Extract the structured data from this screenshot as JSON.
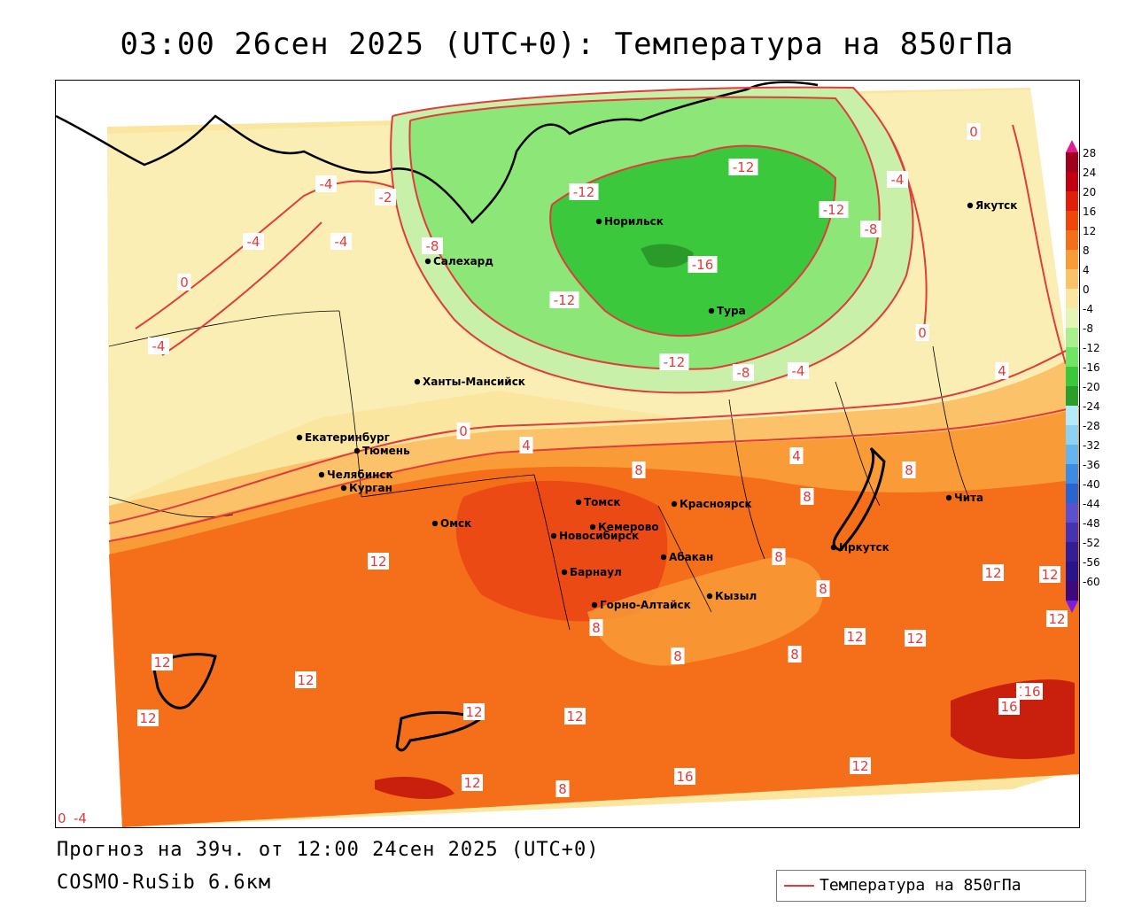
{
  "title": "03:00 26сен 2025 (UTC+0): Температура на 850гПа",
  "forecast_line": "Прогноз на 39ч. от 12:00 24сен 2025 (UTC+0)",
  "model_line": "COSMO-RuSib 6.6км",
  "legend": {
    "label": "Температура на 850гПа",
    "line_color": "#e03c3c"
  },
  "colorbar": {
    "labels": [
      "28",
      "24",
      "20",
      "16",
      "12",
      "8",
      "4",
      "0",
      "-4",
      "-8",
      "-12",
      "-16",
      "-20",
      "-24",
      "-28",
      "-32",
      "-36",
      "-40",
      "-44",
      "-48",
      "-52",
      "-56",
      "-60"
    ],
    "colors": [
      "#a0001e",
      "#c00012",
      "#e01e0a",
      "#f0460a",
      "#f56e19",
      "#f99b37",
      "#fbc26a",
      "#fbe6a0",
      "#e6f5b4",
      "#a8f08c",
      "#6ee664",
      "#3cc83c",
      "#2aa02a",
      "#b4ebfa",
      "#8cd2f5",
      "#64b4f0",
      "#3c8ce6",
      "#2864d2",
      "#5a50d2",
      "#4632b4",
      "#321e96",
      "#28148c",
      "#3c0a7d"
    ]
  },
  "cities": [
    {
      "name": "Якутск"
    },
    {
      "name": "Норильск"
    },
    {
      "name": "Салехард"
    },
    {
      "name": "Тура"
    },
    {
      "name": "Ханты-Мансийск"
    },
    {
      "name": "Екатеринбург"
    },
    {
      "name": "Тюмень"
    },
    {
      "name": "Челябинск"
    },
    {
      "name": "Курган"
    },
    {
      "name": "Омск"
    },
    {
      "name": "Новосибирск"
    },
    {
      "name": "Томск"
    },
    {
      "name": "Кемерово"
    },
    {
      "name": "Красноярск"
    },
    {
      "name": "Барнаул"
    },
    {
      "name": "Абакан"
    },
    {
      "name": "Иркутск"
    },
    {
      "name": "Чита"
    },
    {
      "name": "Кызыл"
    },
    {
      "name": "Горно-Алтайск"
    }
  ],
  "isotherm_labels": [
    "-4",
    "-4",
    "-4",
    "-2",
    "-8",
    "-12",
    "-12",
    "-12",
    "-16",
    "-12",
    "-12",
    "-8",
    "-4",
    "0",
    "-4",
    "0",
    "-8",
    "-4",
    "0",
    "0",
    "4",
    "4",
    "8",
    "4",
    "12",
    "8",
    "8",
    "8",
    "12",
    "12",
    "12",
    "12",
    "12",
    "8",
    "12",
    "8",
    "8",
    "8",
    "12",
    "12",
    "12",
    "16",
    "16",
    "12",
    "12",
    "12",
    "8",
    "12",
    "16",
    "-4",
    "0"
  ]
}
